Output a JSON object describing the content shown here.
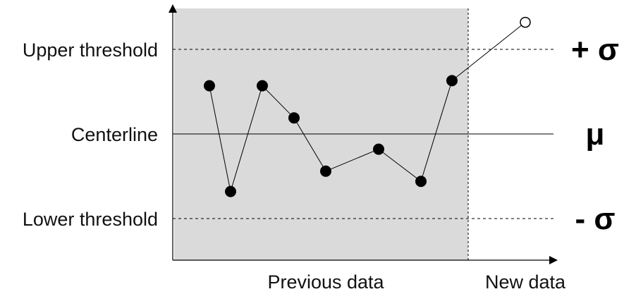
{
  "chart_data": {
    "type": "line",
    "title": "",
    "xlabel": "",
    "ylabel": "",
    "grid": false,
    "ylim": [
      -1.5,
      1.5
    ],
    "reference_lines": [
      {
        "label": "Upper threshold",
        "symbol": "+ σ",
        "value": 1,
        "style": "dashed"
      },
      {
        "label": "Centerline",
        "symbol": "μ",
        "value": 0,
        "style": "solid"
      },
      {
        "label": "Lower threshold",
        "symbol": "- σ",
        "value": -1,
        "style": "dashed"
      }
    ],
    "regions": [
      {
        "label": "Previous data",
        "shaded": true,
        "color": "#dadada"
      },
      {
        "label": "New data",
        "shaded": false
      }
    ],
    "series": [
      {
        "points": [
          {
            "x": 1,
            "y": 0.57,
            "group": "Previous data"
          },
          {
            "x": 2,
            "y": -0.68,
            "group": "Previous data"
          },
          {
            "x": 3,
            "y": 0.57,
            "group": "Previous data"
          },
          {
            "x": 4,
            "y": 0.19,
            "group": "Previous data"
          },
          {
            "x": 5,
            "y": -0.44,
            "group": "Previous data"
          },
          {
            "x": 6,
            "y": -0.18,
            "group": "Previous data"
          },
          {
            "x": 7,
            "y": -0.56,
            "group": "Previous data"
          },
          {
            "x": 8,
            "y": 0.63,
            "group": "Previous data"
          },
          {
            "x": 9,
            "y": 1.32,
            "group": "New data"
          }
        ]
      }
    ],
    "colors": {
      "shade": "#dadada",
      "line": "#000000",
      "marker": "#000000",
      "new_marker_fill": "#ffffff"
    }
  }
}
